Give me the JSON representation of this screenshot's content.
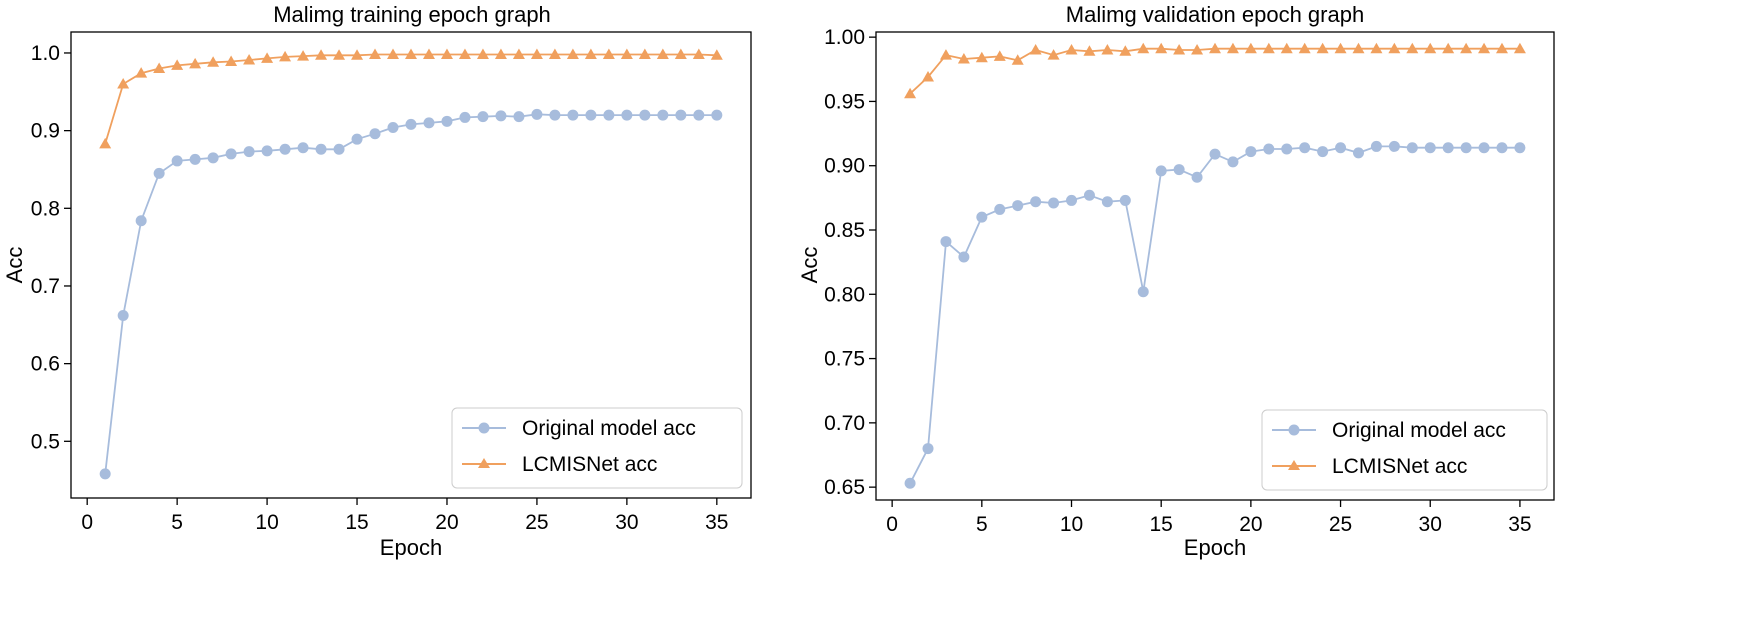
{
  "chart_data": [
    {
      "type": "line",
      "title": "Malimg training epoch graph",
      "xlabel": "Epoch",
      "ylabel": "Acc",
      "xlim": [
        -0.9,
        36.9
      ],
      "ylim": [
        0.427,
        1.027
      ],
      "xticks": [
        0,
        5,
        10,
        15,
        20,
        25,
        30,
        35
      ],
      "xtick_labels": [
        "0",
        "5",
        "10",
        "15",
        "20",
        "25",
        "30",
        "35"
      ],
      "yticks": [
        0.5,
        0.6,
        0.7,
        0.8,
        0.9,
        1.0
      ],
      "ytick_labels": [
        "0.5",
        "0.6",
        "0.7",
        "0.8",
        "0.9",
        "1.0"
      ],
      "grid": false,
      "legend_position": "bottom-right",
      "x": [
        1,
        2,
        3,
        4,
        5,
        6,
        7,
        8,
        9,
        10,
        11,
        12,
        13,
        14,
        15,
        16,
        17,
        18,
        19,
        20,
        21,
        22,
        23,
        24,
        25,
        26,
        27,
        28,
        29,
        30,
        31,
        32,
        33,
        34,
        35
      ],
      "series": [
        {
          "name": "Original model acc",
          "color": "#a7bcdc",
          "marker": "circle",
          "values": [
            0.458,
            0.662,
            0.784,
            0.845,
            0.861,
            0.863,
            0.865,
            0.87,
            0.873,
            0.874,
            0.876,
            0.878,
            0.876,
            0.876,
            0.889,
            0.896,
            0.904,
            0.908,
            0.91,
            0.912,
            0.917,
            0.918,
            0.919,
            0.918,
            0.921,
            0.92,
            0.92,
            0.92,
            0.92,
            0.92,
            0.92,
            0.92,
            0.92,
            0.92,
            0.92
          ]
        },
        {
          "name": "LCMISNet acc",
          "color": "#f0a05e",
          "marker": "triangle",
          "values": [
            0.883,
            0.96,
            0.974,
            0.98,
            0.984,
            0.986,
            0.988,
            0.989,
            0.991,
            0.993,
            0.995,
            0.996,
            0.997,
            0.997,
            0.997,
            0.998,
            0.998,
            0.998,
            0.998,
            0.998,
            0.998,
            0.998,
            0.998,
            0.998,
            0.998,
            0.998,
            0.998,
            0.998,
            0.998,
            0.998,
            0.998,
            0.998,
            0.998,
            0.998,
            0.997
          ]
        }
      ]
    },
    {
      "type": "line",
      "title": "Malimg validation epoch graph",
      "xlabel": "Epoch",
      "ylabel": "Acc",
      "xlim": [
        -0.9,
        36.9
      ],
      "ylim": [
        0.64,
        1.004
      ],
      "xticks": [
        0,
        5,
        10,
        15,
        20,
        25,
        30,
        35
      ],
      "xtick_labels": [
        "0",
        "5",
        "10",
        "15",
        "20",
        "25",
        "30",
        "35"
      ],
      "yticks": [
        0.65,
        0.7,
        0.75,
        0.8,
        0.85,
        0.9,
        0.95,
        1.0
      ],
      "ytick_labels": [
        "0.65",
        "0.70",
        "0.75",
        "0.80",
        "0.85",
        "0.90",
        "0.95",
        "1.00"
      ],
      "grid": false,
      "legend_position": "bottom-right",
      "x": [
        1,
        2,
        3,
        4,
        5,
        6,
        7,
        8,
        9,
        10,
        11,
        12,
        13,
        14,
        15,
        16,
        17,
        18,
        19,
        20,
        21,
        22,
        23,
        24,
        25,
        26,
        27,
        28,
        29,
        30,
        31,
        32,
        33,
        34,
        35
      ],
      "series": [
        {
          "name": "Original model acc",
          "color": "#a7bcdc",
          "marker": "circle",
          "values": [
            0.653,
            0.68,
            0.841,
            0.829,
            0.86,
            0.866,
            0.869,
            0.872,
            0.871,
            0.873,
            0.877,
            0.872,
            0.873,
            0.802,
            0.896,
            0.897,
            0.891,
            0.909,
            0.903,
            0.911,
            0.913,
            0.913,
            0.914,
            0.911,
            0.914,
            0.91,
            0.915,
            0.915,
            0.914,
            0.914,
            0.914,
            0.914,
            0.914,
            0.914,
            0.914
          ]
        },
        {
          "name": "LCMISNet acc",
          "color": "#f0a05e",
          "marker": "triangle",
          "values": [
            0.956,
            0.969,
            0.986,
            0.983,
            0.984,
            0.985,
            0.982,
            0.99,
            0.986,
            0.99,
            0.989,
            0.99,
            0.989,
            0.991,
            0.991,
            0.99,
            0.99,
            0.991,
            0.991,
            0.991,
            0.991,
            0.991,
            0.991,
            0.991,
            0.991,
            0.991,
            0.991,
            0.991,
            0.991,
            0.991,
            0.991,
            0.991,
            0.991,
            0.991,
            0.991
          ]
        }
      ]
    }
  ]
}
